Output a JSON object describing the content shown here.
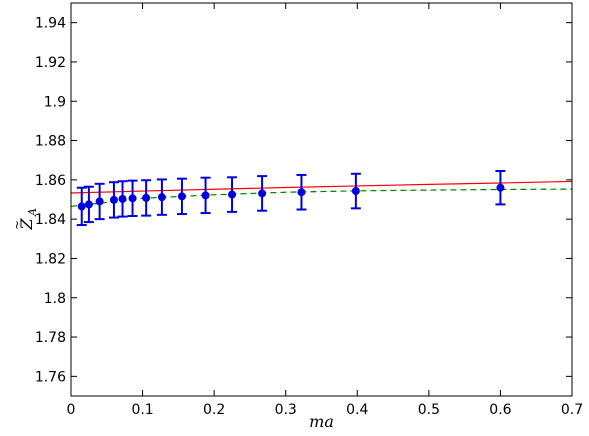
{
  "chart_data": {
    "type": "scatter",
    "xlabel": "ma",
    "ylabel_main": "Z",
    "ylabel_sub": "A",
    "ylabel_accent": "~",
    "xlim": [
      0,
      0.7
    ],
    "ylim": [
      1.75,
      1.95
    ],
    "xticks": [
      0,
      0.1,
      0.2,
      0.3,
      0.4,
      0.5,
      0.6,
      0.7
    ],
    "xtick_labels": [
      "0",
      "0.1",
      "0.2",
      "0.3",
      "0.4",
      "0.5",
      "0.6",
      "0.7"
    ],
    "yticks": [
      1.76,
      1.78,
      1.8,
      1.82,
      1.84,
      1.86,
      1.88,
      1.9,
      1.92,
      1.94
    ],
    "ytick_labels": [
      "1.76",
      "1.78",
      "1.8",
      "1.82",
      "1.84",
      "1.86",
      "1.88",
      "1.9",
      "1.92",
      "1.94"
    ],
    "grid": false,
    "legend": false,
    "series": [
      {
        "kind": "points-with-errorbars",
        "color": "#0000dd",
        "x": [
          0.015,
          0.025,
          0.04,
          0.06,
          0.072,
          0.086,
          0.105,
          0.127,
          0.155,
          0.188,
          0.225,
          0.267,
          0.322,
          0.398,
          0.6
        ],
        "y": [
          1.8465,
          1.8475,
          1.849,
          1.8498,
          1.8503,
          1.8506,
          1.8508,
          1.8512,
          1.8516,
          1.8521,
          1.8525,
          1.8531,
          1.8537,
          1.8543,
          1.856
        ],
        "yerr": [
          0.0095,
          0.009,
          0.009,
          0.009,
          0.009,
          0.009,
          0.009,
          0.009,
          0.009,
          0.009,
          0.0088,
          0.0088,
          0.0088,
          0.0088,
          0.0085
        ]
      },
      {
        "kind": "fit-line",
        "style": "solid",
        "color": "#ff0000",
        "x": [
          0,
          0.1,
          0.2,
          0.3,
          0.4,
          0.5,
          0.6,
          0.7
        ],
        "y": [
          1.8533,
          1.8543,
          1.8552,
          1.8561,
          1.8569,
          1.8577,
          1.8584,
          1.8592
        ]
      },
      {
        "kind": "fit-line",
        "style": "dashed",
        "color": "#008000",
        "x": [
          0,
          0.1,
          0.2,
          0.3,
          0.4,
          0.5,
          0.6,
          0.7
        ],
        "y": [
          1.8465,
          1.8506,
          1.8524,
          1.8537,
          1.8544,
          1.8548,
          1.8551,
          1.8553
        ]
      }
    ]
  }
}
